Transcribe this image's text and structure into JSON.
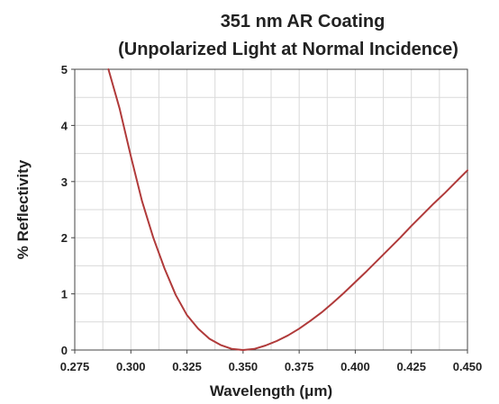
{
  "chart_data": {
    "type": "line",
    "title": "351 nm AR Coating",
    "subtitle": "(Unpolarized Light at Normal Incidence)",
    "xlabel": "Wavelength (μm)",
    "ylabel": "% Reflectivity",
    "xlim": [
      0.275,
      0.45
    ],
    "ylim": [
      0,
      5
    ],
    "x_ticks": [
      "0.275",
      "0.300",
      "0.325",
      "0.350",
      "0.375",
      "0.400",
      "0.425",
      "0.450"
    ],
    "y_ticks": [
      "0",
      "1",
      "2",
      "3",
      "4",
      "5"
    ],
    "grid": true,
    "series": [
      {
        "color": "#b03a3a",
        "x": [
          0.29,
          0.295,
          0.3,
          0.305,
          0.31,
          0.315,
          0.32,
          0.325,
          0.33,
          0.335,
          0.34,
          0.345,
          0.35,
          0.355,
          0.36,
          0.365,
          0.37,
          0.375,
          0.38,
          0.385,
          0.39,
          0.395,
          0.4,
          0.405,
          0.41,
          0.415,
          0.42,
          0.425,
          0.43,
          0.435,
          0.44,
          0.445,
          0.45
        ],
        "y": [
          5.0,
          4.3,
          3.45,
          2.65,
          2.0,
          1.45,
          0.98,
          0.62,
          0.38,
          0.2,
          0.09,
          0.02,
          0.0,
          0.02,
          0.08,
          0.16,
          0.26,
          0.38,
          0.52,
          0.67,
          0.84,
          1.02,
          1.21,
          1.4,
          1.6,
          1.8,
          2.0,
          2.21,
          2.41,
          2.61,
          2.8,
          3.0,
          3.2
        ]
      }
    ]
  }
}
